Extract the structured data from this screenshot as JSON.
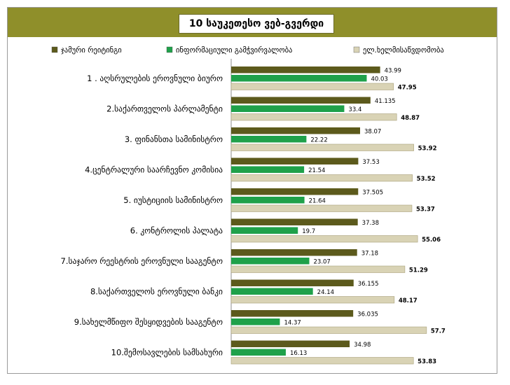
{
  "chart_data": {
    "type": "bar",
    "orientation": "horizontal",
    "title": "10 საუკეთესო ვებ-გვერდი",
    "legend_position": "top",
    "grid": false,
    "xlim": [
      0,
      60
    ],
    "categories": [
      "1 .  აღსრულების ეროვნული ბიურო",
      "2.საქართველოს პარლამენტი",
      "3. ფინანსთა სამინისტრო",
      "4.ცენტრალური საარჩევნო კომისია",
      "5. იუსტიციის სამინისტრო",
      "6. კონტროლის პალატა",
      "7.საჯარო რეესტრის ეროვნული სააგენტო",
      "8.საქართველოს ეროვნული ბანკი",
      "9.სახელმწიფო შესყიდვების სააგენტო",
      "10.შემოსავლების სამსახური"
    ],
    "series": [
      {
        "name": "ჯამური რეიტინგი",
        "color": "#5c5a1c",
        "values": [
          43.99,
          41.135,
          38.07,
          37.53,
          37.505,
          37.38,
          37.18,
          36.155,
          36.035,
          34.98
        ],
        "labels": [
          "43.99",
          "41.135",
          "38.07",
          "37.53",
          "37.505",
          "37.38",
          "37.18",
          "36.155",
          "36.035",
          "34.98"
        ]
      },
      {
        "name": "ინფორმაციული გამჭვირვალობა",
        "color": "#1fa14a",
        "values": [
          40.03,
          33.4,
          22.22,
          21.54,
          21.64,
          19.7,
          23.07,
          24.14,
          14.37,
          16.13
        ],
        "labels": [
          "40.03",
          "33.4",
          "22.22",
          "21.54",
          "21.64",
          "19.7",
          "23.07",
          "24.14",
          "14.37",
          "16.13"
        ]
      },
      {
        "name": "ელ.ხელმისაწვდომობა",
        "color": "#d9d3b5",
        "values": [
          47.95,
          48.87,
          53.92,
          53.52,
          53.37,
          55.06,
          51.29,
          48.17,
          57.7,
          53.83
        ],
        "labels": [
          "47.95",
          "48.87",
          "53.92",
          "53.52",
          "53.37",
          "55.06",
          "51.29",
          "48.17",
          "57.7",
          "53.83"
        ]
      }
    ]
  }
}
